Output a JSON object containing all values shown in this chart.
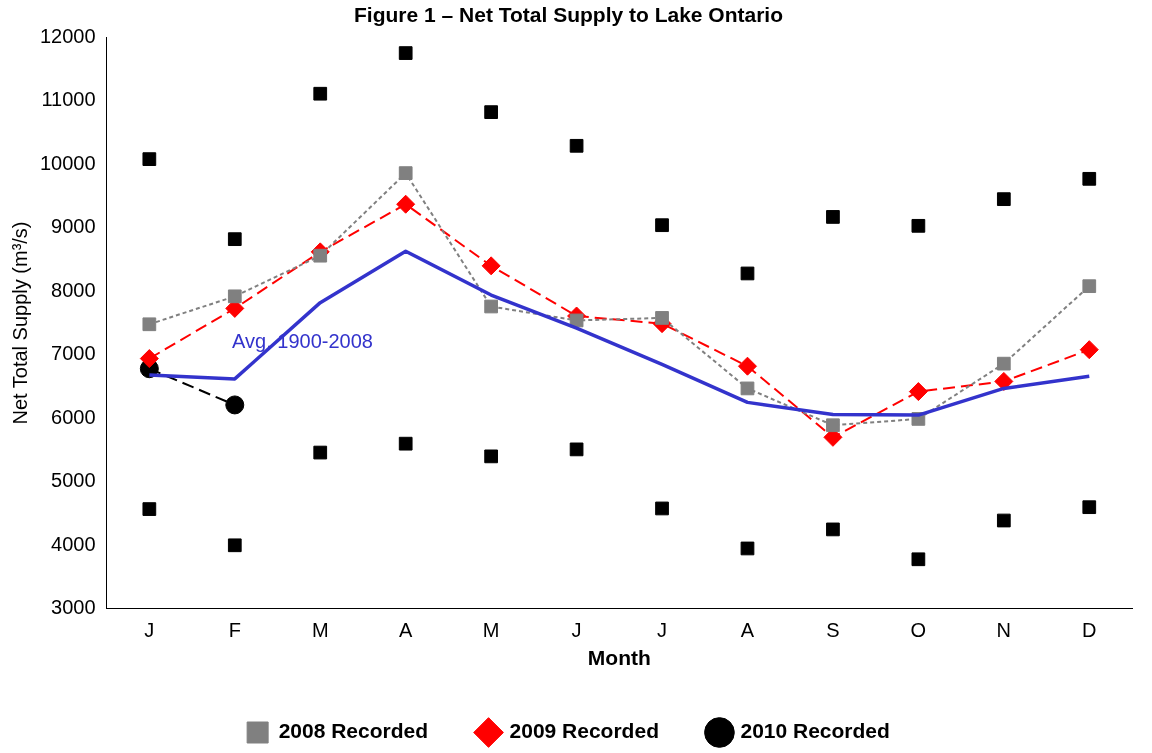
{
  "chart_data": {
    "type": "line",
    "title": "Figure 1 – Net Total Supply to Lake Ontario",
    "xlabel": "Month",
    "ylabel": "Net Total Supply (m³/s)",
    "categories": [
      "J",
      "F",
      "M",
      "A",
      "M",
      "J",
      "J",
      "A",
      "S",
      "O",
      "N",
      "D"
    ],
    "ylim": [
      3000,
      12000
    ],
    "yticks": [
      3000,
      4000,
      5000,
      6000,
      7000,
      8000,
      9000,
      10000,
      11000,
      12000
    ],
    "grid": false,
    "legend": "bottom",
    "series": [
      {
        "type": "scatter",
        "marker": "square",
        "color": "#000000",
        "values": [
          10080,
          8820,
          11110,
          11750,
          10820,
          10290,
          9040,
          8280,
          9170,
          9030,
          9450,
          9770
        ]
      },
      {
        "type": "scatter",
        "marker": "square",
        "color": "#000000",
        "values": [
          4570,
          4000,
          5460,
          5600,
          5400,
          5510,
          4580,
          3950,
          4250,
          3780,
          4390,
          4600
        ]
      },
      {
        "name": "Avg. 1900-2008",
        "marker": "none",
        "line_style": "solid",
        "color": "#3333cc",
        "values": [
          6680,
          6620,
          7820,
          8630,
          7940,
          7420,
          6850,
          6250,
          6060,
          6050,
          6470,
          6660
        ]
      },
      {
        "name": "2008 Recorded",
        "marker": "square",
        "line_style": "dotted",
        "color": "#808080",
        "values": [
          7480,
          7920,
          8560,
          9860,
          7760,
          7540,
          7580,
          6470,
          5890,
          5990,
          6860,
          8080
        ]
      },
      {
        "name": "2009 Recorded",
        "marker": "diamond",
        "line_style": "dashed",
        "color": "#ff0000",
        "values": [
          6940,
          7730,
          8620,
          9370,
          8400,
          7610,
          7490,
          6820,
          5700,
          6420,
          6580,
          7080
        ]
      },
      {
        "name": "2010 Recorded",
        "marker": "circle",
        "line_style": "dashed",
        "color": "#000000",
        "values": [
          6780,
          6210,
          null,
          null,
          null,
          null,
          null,
          null,
          null,
          null,
          null,
          null
        ]
      }
    ]
  }
}
